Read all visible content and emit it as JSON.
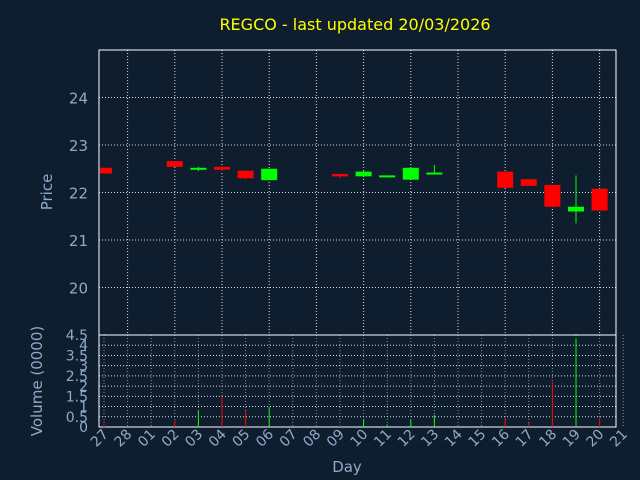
{
  "chart_data": {
    "type": "candlestick",
    "title": "REGCO - last updated 20/03/2026",
    "xlabel": "Day",
    "ylabel_price": "Price",
    "ylabel_volume": "Volume (0000)",
    "x_tick_labels": [
      "27",
      "28",
      "01",
      "02",
      "03",
      "04",
      "05",
      "06",
      "07",
      "08",
      "09",
      "10",
      "11",
      "12",
      "13",
      "14",
      "15",
      "16",
      "17",
      "18",
      "19",
      "20",
      "21"
    ],
    "price_ylim": [
      19,
      25
    ],
    "price_ticks": [
      "20",
      "21",
      "22",
      "23",
      "24"
    ],
    "volume_ylim": [
      0,
      4.5
    ],
    "volume_ticks": [
      "0",
      "0.5",
      "1",
      "1.5",
      "2",
      "2.5",
      "3",
      "3.5",
      "4",
      "4.5"
    ],
    "grid": true,
    "colors": {
      "up": "#00ff00",
      "down": "#ff0000",
      "background": "#0f1e2f",
      "grid": "#ffffff",
      "axis": "#8faac8",
      "title": "#ffff00"
    },
    "candles": [
      {
        "x": "27",
        "open": 22.52,
        "close": 22.4,
        "high": 22.52,
        "low": 22.4,
        "volume": 0.15
      },
      {
        "x": "02",
        "open": 22.66,
        "close": 22.54,
        "high": 22.66,
        "low": 22.54,
        "volume": 0.3
      },
      {
        "x": "03",
        "open": 22.48,
        "close": 22.52,
        "high": 22.54,
        "low": 22.45,
        "volume": 0.8
      },
      {
        "x": "04",
        "open": 22.54,
        "close": 22.48,
        "high": 22.54,
        "low": 22.45,
        "volume": 1.5
      },
      {
        "x": "05",
        "open": 22.46,
        "close": 22.3,
        "high": 22.46,
        "low": 22.28,
        "volume": 0.75
      },
      {
        "x": "06",
        "open": 22.26,
        "close": 22.5,
        "high": 22.5,
        "low": 22.26,
        "volume": 0.95
      },
      {
        "x": "09",
        "open": 22.39,
        "close": 22.34,
        "high": 22.39,
        "low": 22.3,
        "volume": 0.08
      },
      {
        "x": "10",
        "open": 22.34,
        "close": 22.44,
        "high": 22.46,
        "low": 22.32,
        "volume": 0.35
      },
      {
        "x": "11",
        "open": 22.34,
        "close": 22.36,
        "high": 22.36,
        "low": 22.33,
        "volume": 0.12
      },
      {
        "x": "12",
        "open": 22.27,
        "close": 22.52,
        "high": 22.52,
        "low": 22.27,
        "volume": 0.35
      },
      {
        "x": "13",
        "open": 22.4,
        "close": 22.42,
        "high": 22.58,
        "low": 22.38,
        "volume": 0.6
      },
      {
        "x": "16",
        "open": 22.44,
        "close": 22.1,
        "high": 22.44,
        "low": 22.1,
        "volume": 0.45
      },
      {
        "x": "17",
        "open": 22.28,
        "close": 22.14,
        "high": 22.28,
        "low": 22.14,
        "volume": 0.2
      },
      {
        "x": "18",
        "open": 22.16,
        "close": 21.7,
        "high": 22.16,
        "low": 21.7,
        "volume": 2.2
      },
      {
        "x": "19",
        "open": 21.6,
        "close": 21.7,
        "high": 22.36,
        "low": 21.35,
        "volume": 4.3
      },
      {
        "x": "20",
        "open": 22.08,
        "close": 21.62,
        "high": 22.08,
        "low": 21.62,
        "volume": 0.45
      }
    ]
  }
}
